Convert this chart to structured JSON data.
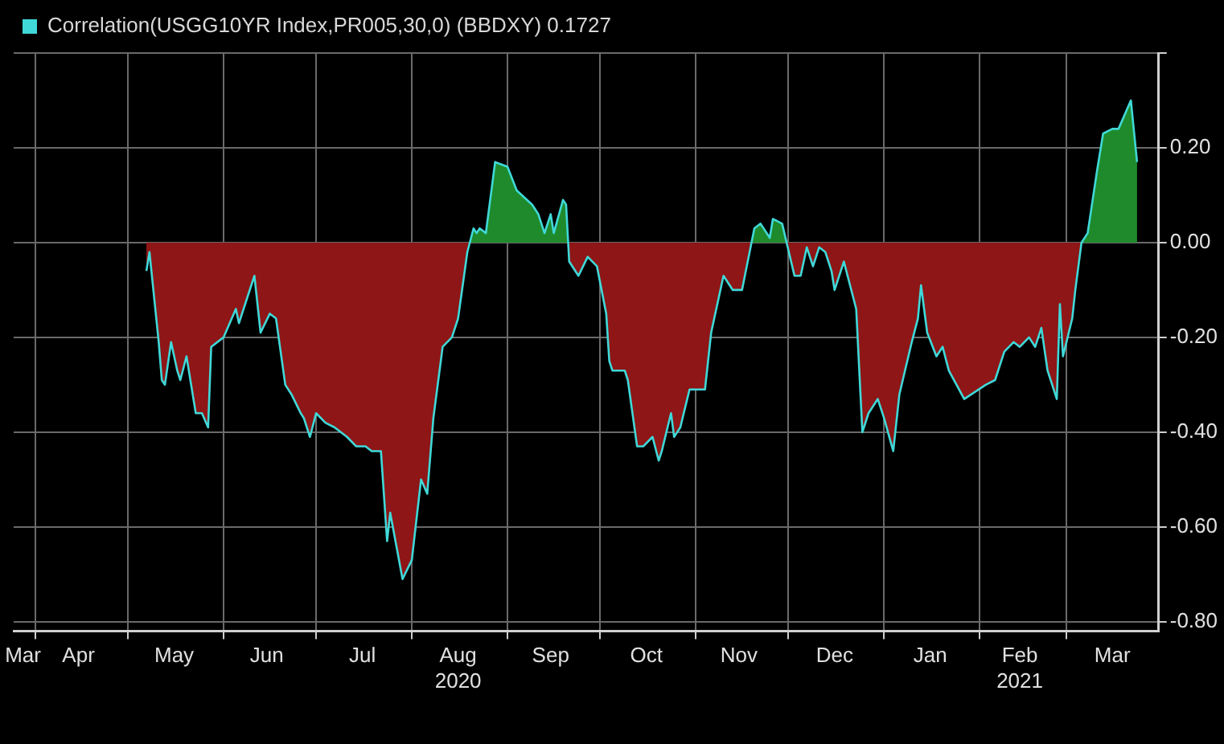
{
  "chart_data": {
    "type": "area",
    "legend": "top left",
    "grid": true,
    "marker": "none",
    "line_style": "solid",
    "xlim": [
      "2020-03-25",
      "2021-03-31"
    ],
    "xticks": [
      {
        "value": "2020-03-28",
        "label": "Mar"
      },
      {
        "value": "2020-04-01",
        "label": null
      },
      {
        "value": "2020-04-15",
        "label": "Apr"
      },
      {
        "value": "2020-05-01",
        "label": null
      },
      {
        "value": "2020-05-16",
        "label": "May"
      },
      {
        "value": "2020-06-01",
        "label": null
      },
      {
        "value": "2020-06-15",
        "label": "Jun"
      },
      {
        "value": "2020-07-01",
        "label": null
      },
      {
        "value": "2020-07-16",
        "label": "Jul"
      },
      {
        "value": "2020-08-01",
        "label": null
      },
      {
        "value": "2020-08-16",
        "label": "Aug\n2020"
      },
      {
        "value": "2020-09-01",
        "label": null
      },
      {
        "value": "2020-09-15",
        "label": "Sep"
      },
      {
        "value": "2020-10-01",
        "label": null
      },
      {
        "value": "2020-10-16",
        "label": "Oct"
      },
      {
        "value": "2020-11-01",
        "label": null
      },
      {
        "value": "2020-11-15",
        "label": "Nov"
      },
      {
        "value": "2020-12-01",
        "label": null
      },
      {
        "value": "2020-12-16",
        "label": "Dec"
      },
      {
        "value": "2021-01-01",
        "label": null
      },
      {
        "value": "2021-01-16",
        "label": "Jan"
      },
      {
        "value": "2021-02-01",
        "label": null
      },
      {
        "value": "2021-02-14",
        "label": "Feb\n2021"
      },
      {
        "value": "2021-03-01",
        "label": null
      },
      {
        "value": "2021-03-16",
        "label": "Mar"
      }
    ],
    "ylim": [
      -0.82,
      0.4
    ],
    "yticks": [
      {
        "value": 0.4,
        "label": null
      },
      {
        "value": 0.2,
        "label": "0.20"
      },
      {
        "value": 0,
        "label": "0.00"
      },
      {
        "value": -0.2,
        "label": "-0.20"
      },
      {
        "value": -0.4,
        "label": "-0.40"
      },
      {
        "value": -0.6,
        "label": "-0.60"
      },
      {
        "value": -0.8,
        "label": "-0.80"
      }
    ],
    "series": [
      {
        "name": "Correlation(USGG10YR Index,PR005,30,0) (BBDXY) 0.1727",
        "color": "#40d8d8",
        "x": [
          "2020-05-07",
          "2020-05-08",
          "2020-05-11",
          "2020-05-12",
          "2020-05-13",
          "2020-05-15",
          "2020-05-17",
          "2020-05-18",
          "2020-05-20",
          "2020-05-23",
          "2020-05-25",
          "2020-05-27",
          "2020-05-28",
          "2020-06-01",
          "2020-06-05",
          "2020-06-06",
          "2020-06-11",
          "2020-06-13",
          "2020-06-16",
          "2020-06-18",
          "2020-06-21",
          "2020-06-23",
          "2020-06-26",
          "2020-06-27",
          "2020-06-29",
          "2020-07-01",
          "2020-07-04",
          "2020-07-07",
          "2020-07-11",
          "2020-07-14",
          "2020-07-17",
          "2020-07-19",
          "2020-07-22",
          "2020-07-24",
          "2020-07-25",
          "2020-07-27",
          "2020-07-29",
          "2020-08-01",
          "2020-08-04",
          "2020-08-06",
          "2020-08-08",
          "2020-08-11",
          "2020-08-14",
          "2020-08-16",
          "2020-08-19",
          "2020-08-21",
          "2020-08-22",
          "2020-08-23",
          "2020-08-25",
          "2020-08-28",
          "2020-09-01",
          "2020-09-04",
          "2020-09-09",
          "2020-09-11",
          "2020-09-13",
          "2020-09-15",
          "2020-09-16",
          "2020-09-19",
          "2020-09-20",
          "2020-09-21",
          "2020-09-24",
          "2020-09-27",
          "2020-09-30",
          "2020-10-03",
          "2020-10-04",
          "2020-10-05",
          "2020-10-09",
          "2020-10-10",
          "2020-10-13",
          "2020-10-15",
          "2020-10-18",
          "2020-10-20",
          "2020-10-21",
          "2020-10-24",
          "2020-10-25",
          "2020-10-27",
          "2020-10-30",
          "2020-11-04",
          "2020-11-06",
          "2020-11-10",
          "2020-11-13",
          "2020-11-16",
          "2020-11-20",
          "2020-11-22",
          "2020-11-25",
          "2020-11-26",
          "2020-11-29",
          "2020-12-03",
          "2020-12-05",
          "2020-12-07",
          "2020-12-09",
          "2020-12-11",
          "2020-12-13",
          "2020-12-15",
          "2020-12-16",
          "2020-12-19",
          "2020-12-23",
          "2020-12-25",
          "2020-12-27",
          "2020-12-30",
          "2021-01-01",
          "2021-01-04",
          "2021-01-06",
          "2021-01-10",
          "2021-01-12",
          "2021-01-13",
          "2021-01-15",
          "2021-01-18",
          "2021-01-20",
          "2021-01-22",
          "2021-01-27",
          "2021-02-03",
          "2021-02-06",
          "2021-02-09",
          "2021-02-12",
          "2021-02-14",
          "2021-02-17",
          "2021-02-19",
          "2021-02-21",
          "2021-02-23",
          "2021-02-26",
          "2021-02-27",
          "2021-02-28",
          "2021-03-03",
          "2021-03-04",
          "2021-03-06",
          "2021-03-08",
          "2021-03-11",
          "2021-03-13",
          "2021-03-16",
          "2021-03-18",
          "2021-03-22",
          "2021-03-24"
        ],
        "values": [
          -0.06,
          -0.02,
          -0.21,
          -0.29,
          -0.3,
          -0.21,
          -0.27,
          -0.29,
          -0.24,
          -0.36,
          -0.36,
          -0.39,
          -0.22,
          -0.2,
          -0.14,
          -0.17,
          -0.07,
          -0.19,
          -0.15,
          -0.16,
          -0.3,
          -0.32,
          -0.36,
          -0.37,
          -0.41,
          -0.36,
          -0.38,
          -0.39,
          -0.41,
          -0.43,
          -0.43,
          -0.44,
          -0.44,
          -0.63,
          -0.57,
          -0.64,
          -0.71,
          -0.67,
          -0.5,
          -0.53,
          -0.37,
          -0.22,
          -0.2,
          -0.16,
          -0.02,
          0.03,
          0.02,
          0.03,
          0.02,
          0.17,
          0.16,
          0.11,
          0.08,
          0.06,
          0.02,
          0.06,
          0.02,
          0.09,
          0.08,
          -0.04,
          -0.07,
          -0.03,
          -0.05,
          -0.15,
          -0.25,
          -0.27,
          -0.27,
          -0.29,
          -0.43,
          -0.43,
          -0.41,
          -0.46,
          -0.44,
          -0.36,
          -0.41,
          -0.39,
          -0.31,
          -0.31,
          -0.19,
          -0.07,
          -0.1,
          -0.1,
          0.03,
          0.04,
          0.01,
          0.05,
          0.04,
          -0.07,
          -0.07,
          -0.01,
          -0.05,
          -0.01,
          -0.02,
          -0.06,
          -0.1,
          -0.04,
          -0.14,
          -0.4,
          -0.36,
          -0.33,
          -0.37,
          -0.44,
          -0.32,
          -0.21,
          -0.16,
          -0.09,
          -0.19,
          -0.24,
          -0.22,
          -0.27,
          -0.33,
          -0.3,
          -0.29,
          -0.23,
          -0.21,
          -0.22,
          -0.2,
          -0.22,
          -0.18,
          -0.27,
          -0.33,
          -0.13,
          -0.24,
          -0.16,
          -0.1,
          0,
          0.02,
          0.15,
          0.23,
          0.24,
          0.24,
          0.3,
          0.17
        ]
      }
    ]
  }
}
